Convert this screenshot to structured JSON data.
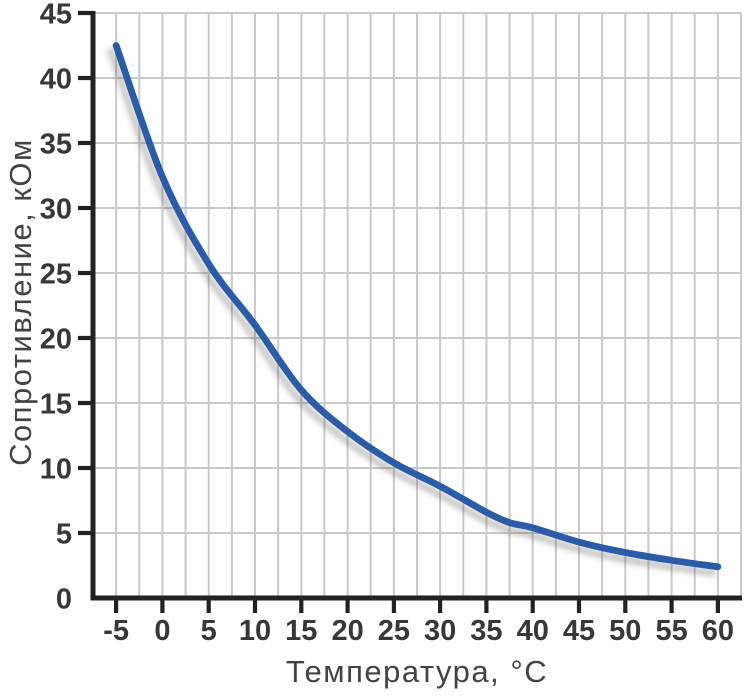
{
  "chart_data": {
    "type": "line",
    "title": "",
    "xlabel": "Температура, °C",
    "ylabel": "Сопротивление, кОм",
    "series": [
      {
        "x": [
          -5,
          0,
          5,
          10,
          15,
          20,
          25,
          30,
          35,
          37.5,
          40,
          45,
          50,
          55,
          60
        ],
        "y": [
          42.5,
          32.4,
          25.7,
          21.0,
          16.0,
          12.8,
          10.4,
          8.6,
          6.6,
          5.8,
          5.4,
          4.3,
          3.5,
          2.9,
          2.4
        ]
      }
    ],
    "xlim": [
      -7.5,
      62.5
    ],
    "ylim": [
      0,
      45
    ],
    "x_ticks": [
      -5,
      0,
      5,
      10,
      15,
      20,
      25,
      30,
      35,
      40,
      45,
      50,
      55,
      60
    ],
    "y_ticks": [
      0,
      5,
      10,
      15,
      20,
      25,
      30,
      35,
      40,
      45
    ],
    "x_minor_grid_step": 2.5,
    "y_grid_step": 5,
    "grid": true,
    "legend": false,
    "colors": {
      "line": "#2b5ca8",
      "grid": "#c9c9c9",
      "axis": "#222222",
      "tick_text": "#383838",
      "title_text": "#434343",
      "background": "#ffffff"
    }
  }
}
